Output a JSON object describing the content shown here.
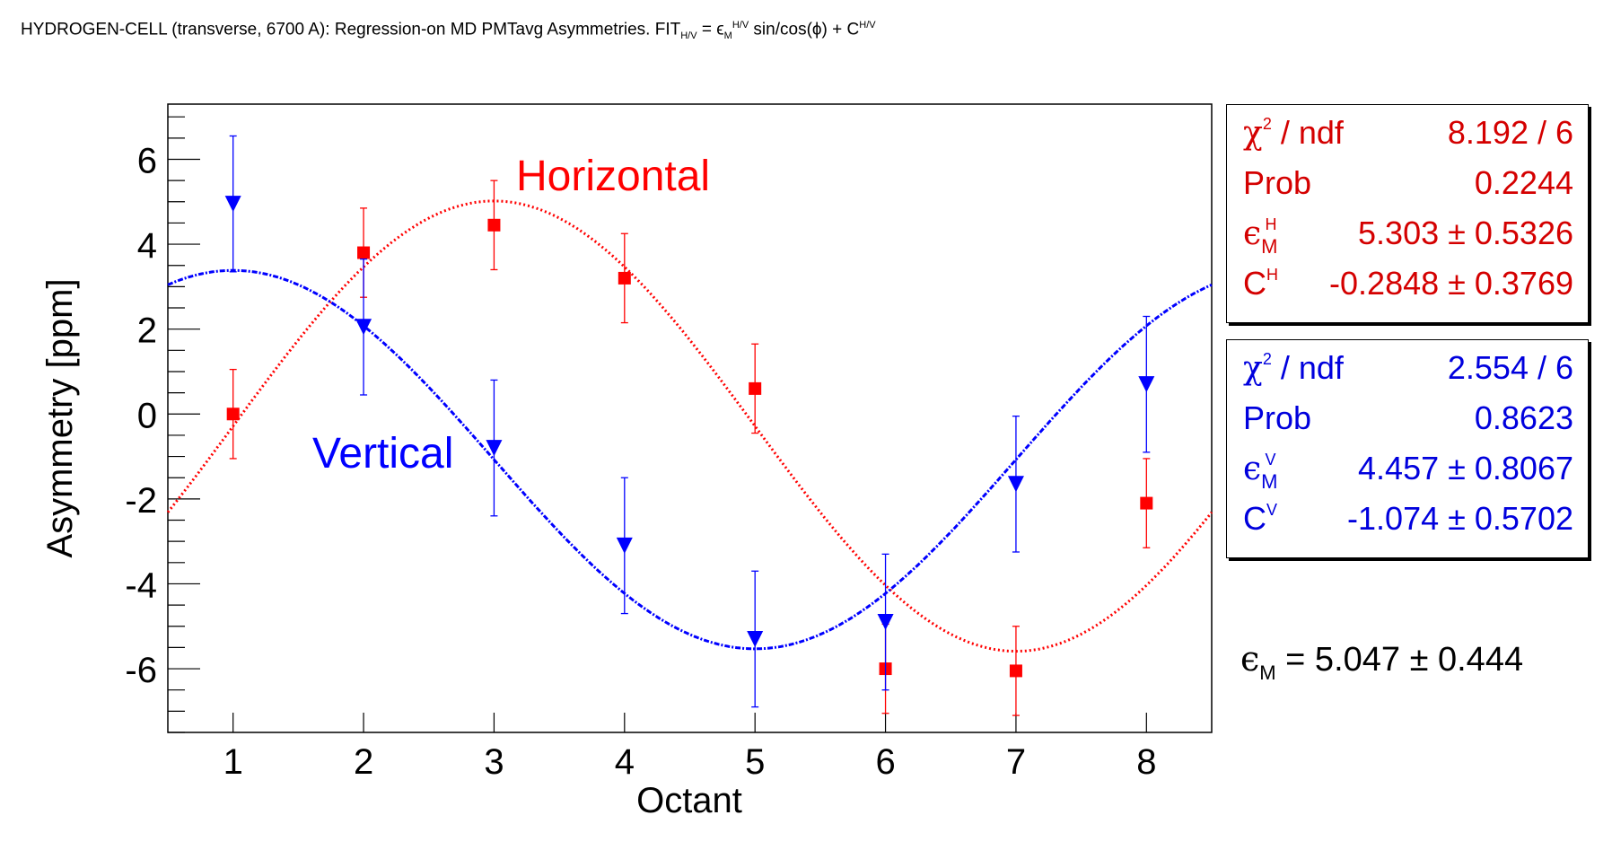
{
  "title": {
    "main": "HYDROGEN-CELL (transverse, 6700 A): Regression-on MD PMTavg Asymmetries. FIT",
    "sub": "H/V",
    "eq": " = ϵ",
    "eq_sub": "M",
    "eq_sup": "H/V",
    "rest": " sin/cos(ϕ) + C",
    "c_sup": "H/V"
  },
  "colors": {
    "horizontal": "#ff0000",
    "vertical": "#0000ff",
    "stats_red": "#d40000",
    "stats_blue": "#0000dd"
  },
  "chart_data": {
    "type": "scatter",
    "xlabel": "Octant",
    "ylabel": "Asymmetry [ppm]",
    "xlim": [
      0.5,
      8.5
    ],
    "ylim": [
      -7.5,
      7.3
    ],
    "xticks": [
      1,
      2,
      3,
      4,
      5,
      6,
      7,
      8
    ],
    "yticks": [
      -6,
      -4,
      -2,
      0,
      2,
      4,
      6
    ],
    "grid": false,
    "series": [
      {
        "name": "Horizontal",
        "marker": "square",
        "x": [
          1,
          2,
          3,
          4,
          5,
          6,
          7,
          8
        ],
        "y": [
          0.0,
          3.8,
          4.45,
          3.2,
          0.6,
          -6.0,
          -6.05,
          -2.1
        ],
        "err": [
          1.05,
          1.05,
          1.05,
          1.05,
          1.05,
          1.05,
          1.05,
          1.05
        ],
        "fit": {
          "function": "sin",
          "amplitude": 5.303,
          "constant": -0.2848
        }
      },
      {
        "name": "Vertical",
        "marker": "triangle-down",
        "x": [
          1,
          2,
          3,
          4,
          5,
          6,
          7,
          8
        ],
        "y": [
          4.95,
          2.05,
          -0.8,
          -3.1,
          -5.3,
          -4.9,
          -1.65,
          0.7
        ],
        "err": [
          1.6,
          1.6,
          1.6,
          1.6,
          1.6,
          1.6,
          1.6,
          1.6
        ],
        "fit": {
          "function": "cos",
          "amplitude": 4.457,
          "constant": -1.074
        }
      }
    ]
  },
  "stats_horizontal": {
    "chi2_label": "χ",
    "chi2_sup": "2",
    "chi2_rest": " / ndf",
    "chi2_value": "8.192 / 6",
    "prob_label": "Prob",
    "prob_value": "0.2244",
    "eps_symbol": "ϵ",
    "eps_sub": "M",
    "eps_sup": "H",
    "eps_value": "5.303 ± 0.5326",
    "c_label": "C",
    "c_sup": "H",
    "c_value": "-0.2848 ± 0.3769"
  },
  "stats_vertical": {
    "chi2_label": "χ",
    "chi2_sup": "2",
    "chi2_rest": " / ndf",
    "chi2_value": "2.554 / 6",
    "prob_label": "Prob",
    "prob_value": "0.8623",
    "eps_symbol": "ϵ",
    "eps_sub": "M",
    "eps_sup": "V",
    "eps_value": "4.457 ± 0.8067",
    "c_label": "C",
    "c_sup": "V",
    "c_value": "-1.074 ± 0.5702"
  },
  "combined": {
    "eps_symbol": "ϵ",
    "eps_sub": "M",
    "text": " = 5.047 ± 0.444"
  }
}
